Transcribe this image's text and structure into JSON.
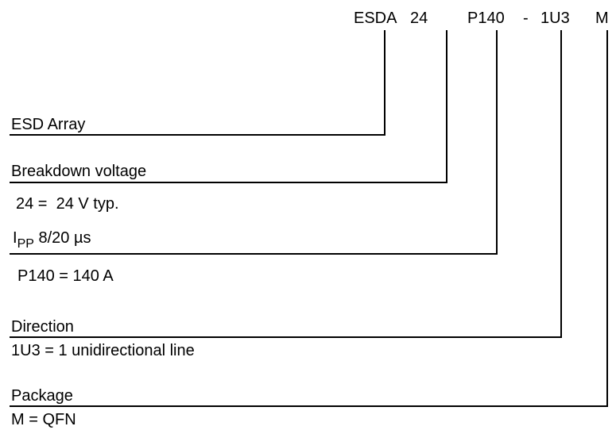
{
  "code": {
    "parts": [
      "ESDA",
      "24",
      "P140",
      "-",
      "1U3",
      "M"
    ]
  },
  "fields": [
    {
      "name": "ESD Array"
    },
    {
      "name": "Breakdown voltage",
      "detail": "24 =  24 V typ."
    },
    {
      "name_main": "I",
      "name_sub": "PP",
      "name_rest": " 8/20 µs",
      "detail": "P140 = 140 A"
    },
    {
      "name": "Direction",
      "detail": "1U3 = 1 unidirectional line"
    },
    {
      "name": "Package",
      "detail": "M = QFN"
    }
  ]
}
